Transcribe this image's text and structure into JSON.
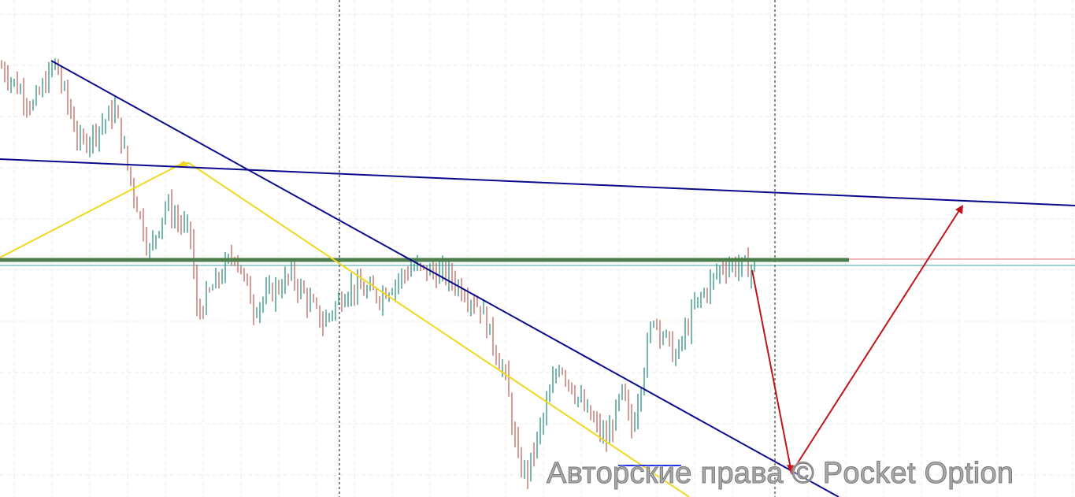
{
  "chart_data": {
    "type": "candlestick",
    "title": "",
    "xlabel": "",
    "ylabel": "",
    "ylim": [
      0,
      100
    ],
    "grid": true,
    "colors": {
      "up": "#3a9a8a",
      "down": "#c9706a",
      "trend_line": "#0a0a8c",
      "pattern": "#f0d820",
      "resistance": "#4c7f4c",
      "forecast_arrow": "#c0141a",
      "level_red": "#e07070",
      "level_teal": "#40a0a0"
    },
    "price_path": {
      "candle_index": [
        0,
        10,
        17,
        25,
        36,
        41,
        47,
        52,
        60,
        62,
        74,
        80,
        92,
        102,
        110,
        120,
        130,
        142,
        152,
        160,
        164,
        167,
        177,
        185,
        192,
        197,
        200,
        207,
        214,
        220,
        229,
        239
      ],
      "value": [
        86.5,
        78.6,
        87.3,
        70.7,
        77.8,
        63.5,
        49.3,
        58.8,
        52.5,
        36.7,
        49.3,
        38.2,
        44.5,
        35.0,
        42.2,
        40.6,
        46.1,
        44.5,
        38.2,
        23.9,
        6.5,
        4.9,
        27.1,
        17.6,
        11.3,
        20.8,
        13.6,
        36.7,
        27.9,
        38.2,
        46.9,
        46.1
      ]
    },
    "annotations": [
      "descending trend line",
      "near-horizontal trend line",
      "yellow pattern lines",
      "green resistance level",
      "red forecast arrows down then up"
    ]
  },
  "watermark": "Авторские права © Pocket Option"
}
